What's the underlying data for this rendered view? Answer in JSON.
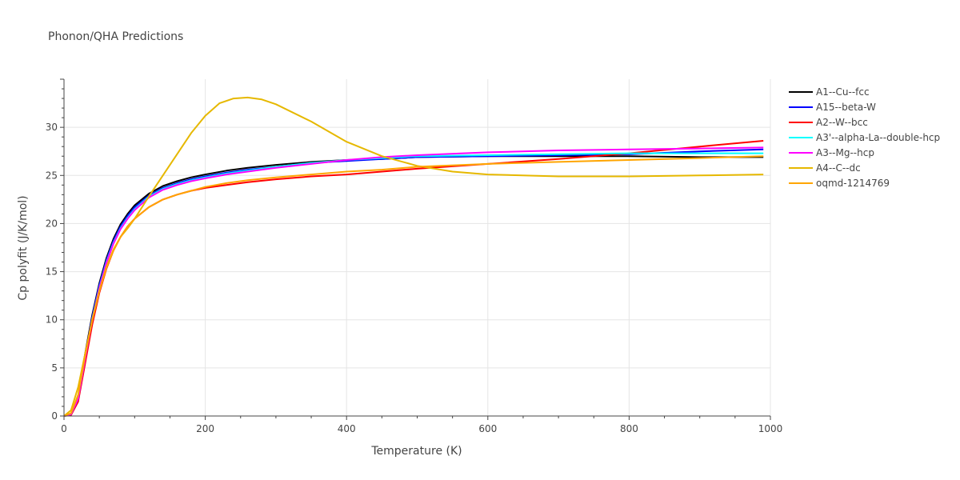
{
  "chart_data": {
    "type": "line",
    "title": "Phonon/QHA Predictions",
    "xlabel": "Temperature (K)",
    "ylabel": "Cp polyfit (J/K/mol)",
    "xlim": [
      0,
      1000
    ],
    "ylim": [
      0,
      35
    ],
    "xticks": [
      0,
      200,
      400,
      600,
      800,
      1000
    ],
    "yticks": [
      0,
      5,
      10,
      15,
      20,
      25,
      30
    ],
    "grid": true,
    "legend_position": "right",
    "series": [
      {
        "name": "A1--Cu--fcc",
        "color": "#000000",
        "x": [
          0,
          10,
          20,
          30,
          40,
          50,
          60,
          70,
          80,
          90,
          100,
          120,
          140,
          160,
          180,
          200,
          230,
          260,
          300,
          350,
          400,
          450,
          500,
          600,
          700,
          800,
          900,
          990
        ],
        "y": [
          0,
          0.2,
          2,
          6.5,
          10.5,
          13.8,
          16.4,
          18.4,
          19.9,
          21.0,
          21.9,
          23.1,
          23.9,
          24.4,
          24.8,
          25.1,
          25.5,
          25.8,
          26.1,
          26.4,
          26.6,
          26.7,
          26.9,
          27.0,
          27.0,
          27.0,
          26.9,
          26.9
        ]
      },
      {
        "name": "A15--beta-W",
        "color": "#0000ff",
        "x": [
          0,
          10,
          20,
          30,
          40,
          50,
          60,
          70,
          80,
          90,
          100,
          120,
          140,
          160,
          180,
          200,
          230,
          260,
          300,
          350,
          400,
          450,
          500,
          600,
          700,
          800,
          900,
          990
        ],
        "y": [
          0,
          0.2,
          1.9,
          6.3,
          10.3,
          13.6,
          16.2,
          18.2,
          19.7,
          20.8,
          21.7,
          22.9,
          23.7,
          24.2,
          24.6,
          24.9,
          25.3,
          25.6,
          25.9,
          26.3,
          26.5,
          26.7,
          26.9,
          27.0,
          27.1,
          27.2,
          27.5,
          27.7
        ]
      },
      {
        "name": "A2--W--bcc",
        "color": "#ff0000",
        "x": [
          0,
          10,
          20,
          30,
          40,
          50,
          60,
          70,
          80,
          90,
          100,
          120,
          140,
          160,
          180,
          200,
          230,
          260,
          300,
          350,
          400,
          450,
          500,
          600,
          700,
          800,
          900,
          990
        ],
        "y": [
          0,
          0.1,
          1.5,
          5.5,
          9.5,
          12.8,
          15.3,
          17.2,
          18.6,
          19.7,
          20.5,
          21.7,
          22.5,
          23.0,
          23.4,
          23.7,
          24.0,
          24.3,
          24.6,
          24.9,
          25.1,
          25.4,
          25.7,
          26.2,
          26.7,
          27.3,
          28.0,
          28.6
        ]
      },
      {
        "name": "A3'--alpha-La--double-hcp",
        "color": "#00ffff",
        "x": [
          0,
          10,
          20,
          30,
          40,
          50,
          60,
          70,
          80,
          90,
          100,
          120,
          140,
          160,
          180,
          200,
          230,
          260,
          300,
          350,
          400,
          450,
          500,
          600,
          700,
          800,
          900,
          990
        ],
        "y": [
          0,
          0.2,
          1.8,
          6.1,
          10.1,
          13.4,
          16.0,
          18.0,
          19.5,
          20.6,
          21.5,
          22.8,
          23.6,
          24.1,
          24.5,
          24.8,
          25.2,
          25.5,
          25.9,
          26.3,
          26.6,
          26.8,
          27.0,
          27.1,
          27.2,
          27.3,
          27.3,
          27.3
        ]
      },
      {
        "name": "A3--Mg--hcp",
        "color": "#ff00ff",
        "x": [
          0,
          10,
          20,
          30,
          40,
          50,
          60,
          70,
          80,
          90,
          100,
          120,
          140,
          160,
          180,
          200,
          230,
          260,
          300,
          350,
          400,
          450,
          500,
          600,
          700,
          800,
          900,
          990
        ],
        "y": [
          0,
          0.2,
          1.8,
          6.0,
          10.0,
          13.3,
          15.9,
          17.9,
          19.4,
          20.5,
          21.4,
          22.7,
          23.5,
          24.0,
          24.4,
          24.7,
          25.1,
          25.4,
          25.8,
          26.2,
          26.6,
          26.9,
          27.1,
          27.4,
          27.6,
          27.7,
          27.8,
          27.9
        ]
      },
      {
        "name": "A4--C--dc",
        "color": "#e6b800",
        "x": [
          0,
          10,
          20,
          30,
          40,
          50,
          60,
          70,
          80,
          90,
          100,
          120,
          140,
          160,
          180,
          200,
          220,
          240,
          260,
          280,
          300,
          350,
          400,
          450,
          500,
          550,
          600,
          700,
          800,
          900,
          990
        ],
        "y": [
          0,
          0.6,
          3.0,
          6.5,
          10.0,
          13.0,
          15.5,
          17.3,
          18.6,
          19.5,
          20.5,
          22.8,
          25.0,
          27.2,
          29.4,
          31.2,
          32.5,
          33.0,
          33.1,
          32.9,
          32.4,
          30.6,
          28.5,
          27.0,
          26.0,
          25.4,
          25.1,
          24.9,
          24.9,
          25.0,
          25.1
        ]
      },
      {
        "name": "oqmd-1214769",
        "color": "#ffa500",
        "x": [
          0,
          10,
          20,
          30,
          40,
          50,
          60,
          70,
          80,
          90,
          100,
          120,
          140,
          160,
          180,
          200,
          230,
          260,
          300,
          350,
          400,
          450,
          500,
          600,
          700,
          800,
          900,
          990
        ],
        "y": [
          0,
          0.3,
          2.2,
          6.3,
          10.0,
          13.0,
          15.4,
          17.2,
          18.6,
          19.7,
          20.5,
          21.7,
          22.5,
          23.0,
          23.4,
          23.8,
          24.2,
          24.5,
          24.8,
          25.1,
          25.4,
          25.6,
          25.9,
          26.2,
          26.4,
          26.6,
          26.8,
          27.0
        ]
      }
    ]
  }
}
